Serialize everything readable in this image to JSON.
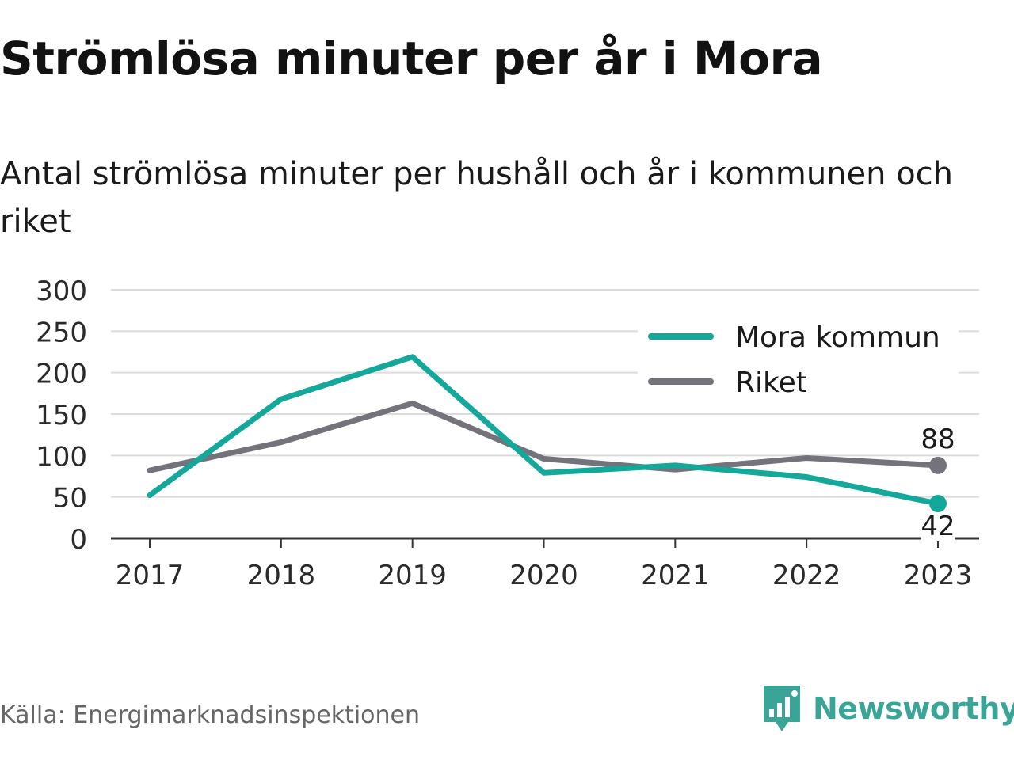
{
  "title": "Strömlösa minuter per år i Mora",
  "subtitle": "Antal strömlösa minuter per hushåll och år i kommunen och riket",
  "source": "Källa: Energimarknadsinspektionen",
  "brand": {
    "name": "Newsworthy",
    "icon": "newsworthy-logo-icon",
    "color": "#3aa597"
  },
  "chart_data": {
    "type": "line",
    "title": "Strömlösa minuter per år i Mora",
    "subtitle": "Antal strömlösa minuter per hushåll och år i kommunen och riket",
    "xlabel": "",
    "ylabel": "",
    "x": [
      "2017",
      "2018",
      "2019",
      "2020",
      "2021",
      "2022",
      "2023"
    ],
    "ylim": [
      0,
      300
    ],
    "yticks": [
      "0",
      "50",
      "100",
      "150",
      "200",
      "250",
      "300"
    ],
    "grid": true,
    "legend_position": "top-right",
    "series": [
      {
        "name": "Mora kommun",
        "color": "#14a89a",
        "values": [
          52,
          168,
          219,
          79,
          88,
          74,
          42
        ],
        "end_label": "42"
      },
      {
        "name": "Riket",
        "color": "#74727a",
        "values": [
          82,
          116,
          163,
          96,
          83,
          97,
          88
        ],
        "end_label": "88"
      }
    ]
  }
}
